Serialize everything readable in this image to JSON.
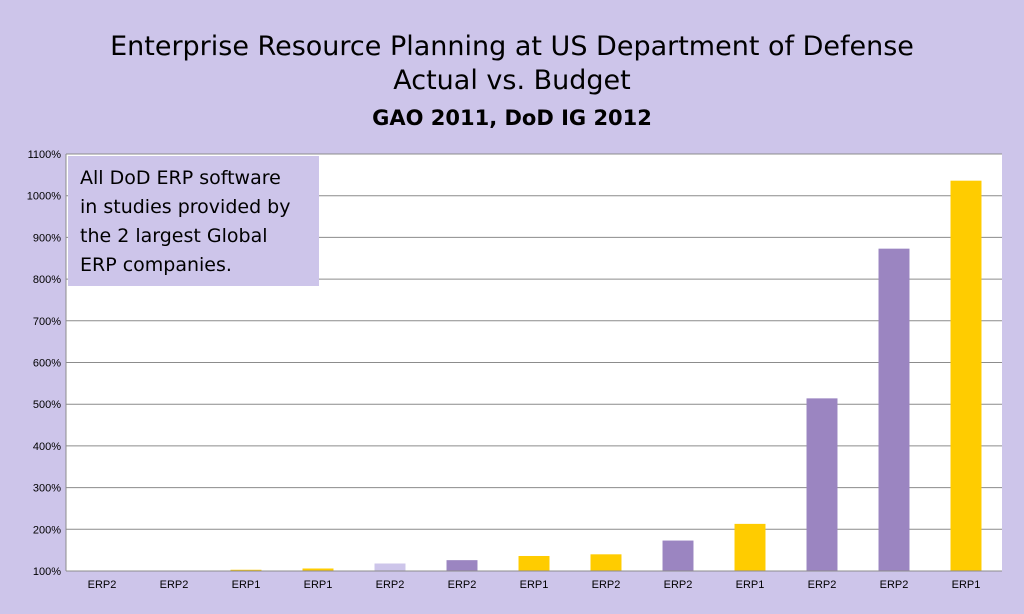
{
  "chart_data": {
    "type": "bar",
    "title": "Enterprise Resource Planning at US Department of Defense",
    "subtitle": "Actual vs. Budget",
    "source_line": "GAO 2011, DoD IG 2012",
    "categories": [
      "ERP2",
      "ERP2",
      "ERP1",
      "ERP1",
      "ERP2",
      "ERP2",
      "ERP1",
      "ERP2",
      "ERP2",
      "ERP1",
      "ERP2",
      "ERP2",
      "ERP1"
    ],
    "values": [
      100,
      100,
      103,
      106,
      118,
      126,
      136,
      140,
      173,
      213,
      514,
      873,
      1036
    ],
    "bar_colors": [
      "#9b85c1",
      "#9b85c1",
      "#ffcc00",
      "#ffcc00",
      "#cdc5ea",
      "#9b85c1",
      "#ffcc00",
      "#ffcc00",
      "#9b85c1",
      "#ffcc00",
      "#9b85c1",
      "#9b85c1",
      "#ffcc00"
    ],
    "ylim": [
      100,
      1100
    ],
    "yticks": [
      {
        "value": 100,
        "label": "100%"
      },
      {
        "value": 200,
        "label": "200%"
      },
      {
        "value": 300,
        "label": "300%"
      },
      {
        "value": 400,
        "label": "400%"
      },
      {
        "value": 500,
        "label": "500%"
      },
      {
        "value": 600,
        "label": "600%"
      },
      {
        "value": 700,
        "label": "700%"
      },
      {
        "value": 800,
        "label": "800%"
      },
      {
        "value": 900,
        "label": "900%"
      },
      {
        "value": 1000,
        "label": "1000%"
      },
      {
        "value": 1100,
        "label": "1100%"
      }
    ],
    "grid": true,
    "legend": "none",
    "annotation": {
      "lines": [
        "All DoD ERP software",
        "in studies provided by",
        "the 2 largest Global",
        "ERP companies."
      ],
      "placement": "top-left"
    }
  },
  "colors": {
    "background": "#cdc5ea",
    "plot_area": "#ffffff",
    "grid": "#8c8c8c",
    "note_box": "#cdc5ea"
  }
}
